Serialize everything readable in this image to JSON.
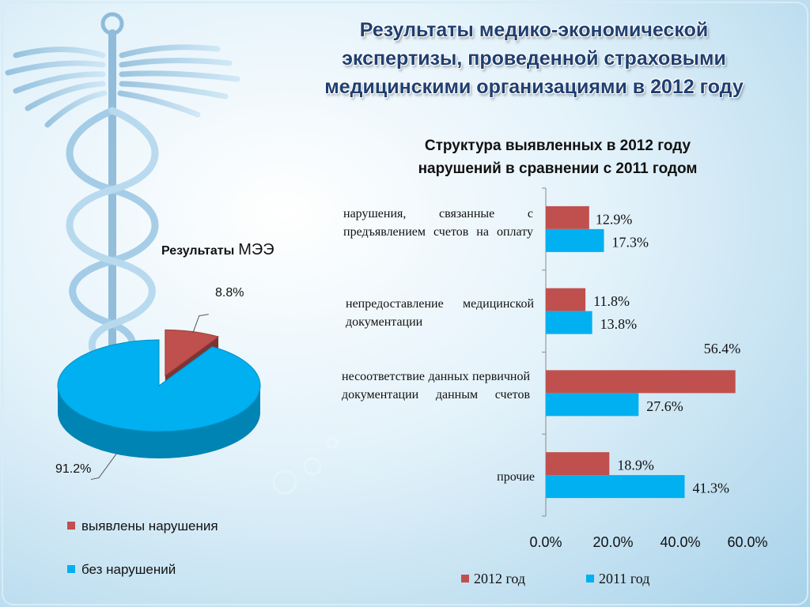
{
  "title_lines": [
    "Результаты медико-экономической",
    "экспертизы, проведенной страховыми",
    "медицинскими организациями в 2012 году"
  ],
  "colors": {
    "red": "#c0504d",
    "blue": "#00b0f0",
    "title": "#1f3f70"
  },
  "chart_data": [
    {
      "type": "pie",
      "title": "Результаты МЭЭ",
      "title_parts": [
        "Результаты",
        "МЭЭ"
      ],
      "slices": [
        {
          "label": "выявлены нарушения",
          "value": 8.8,
          "display": "8.8%",
          "color": "#c0504d"
        },
        {
          "label": "без нарушений",
          "value": 91.2,
          "display": "91.2%",
          "color": "#00b0f0"
        }
      ],
      "legend_position": "bottom"
    },
    {
      "type": "bar",
      "orientation": "horizontal",
      "title_lines": [
        "Структура выявленных в 2012 году",
        "нарушений в сравнении с 2011 годом"
      ],
      "categories": [
        "нарушения, связанные с предъявлением счетов на оплату",
        "непредоставление медицинской документации",
        "несоответствие данных первичной документации данным счетов",
        "прочие"
      ],
      "series": [
        {
          "name": "2012 год",
          "values": [
            12.9,
            11.8,
            56.4,
            18.9
          ],
          "labels": [
            "12.9%",
            "11.8%",
            "56.4%",
            "18.9%"
          ],
          "color": "#c0504d"
        },
        {
          "name": "2011 год",
          "values": [
            17.3,
            13.8,
            27.6,
            41.3
          ],
          "labels": [
            "17.3%",
            "13.8%",
            "27.6%",
            "41.3%"
          ],
          "color": "#00b0f0"
        }
      ],
      "x_ticks": [
        "0.0%",
        "20.0%",
        "40.0%",
        "60.0%"
      ],
      "xlim": [
        0,
        60
      ],
      "grid": false,
      "legend_position": "bottom"
    }
  ]
}
